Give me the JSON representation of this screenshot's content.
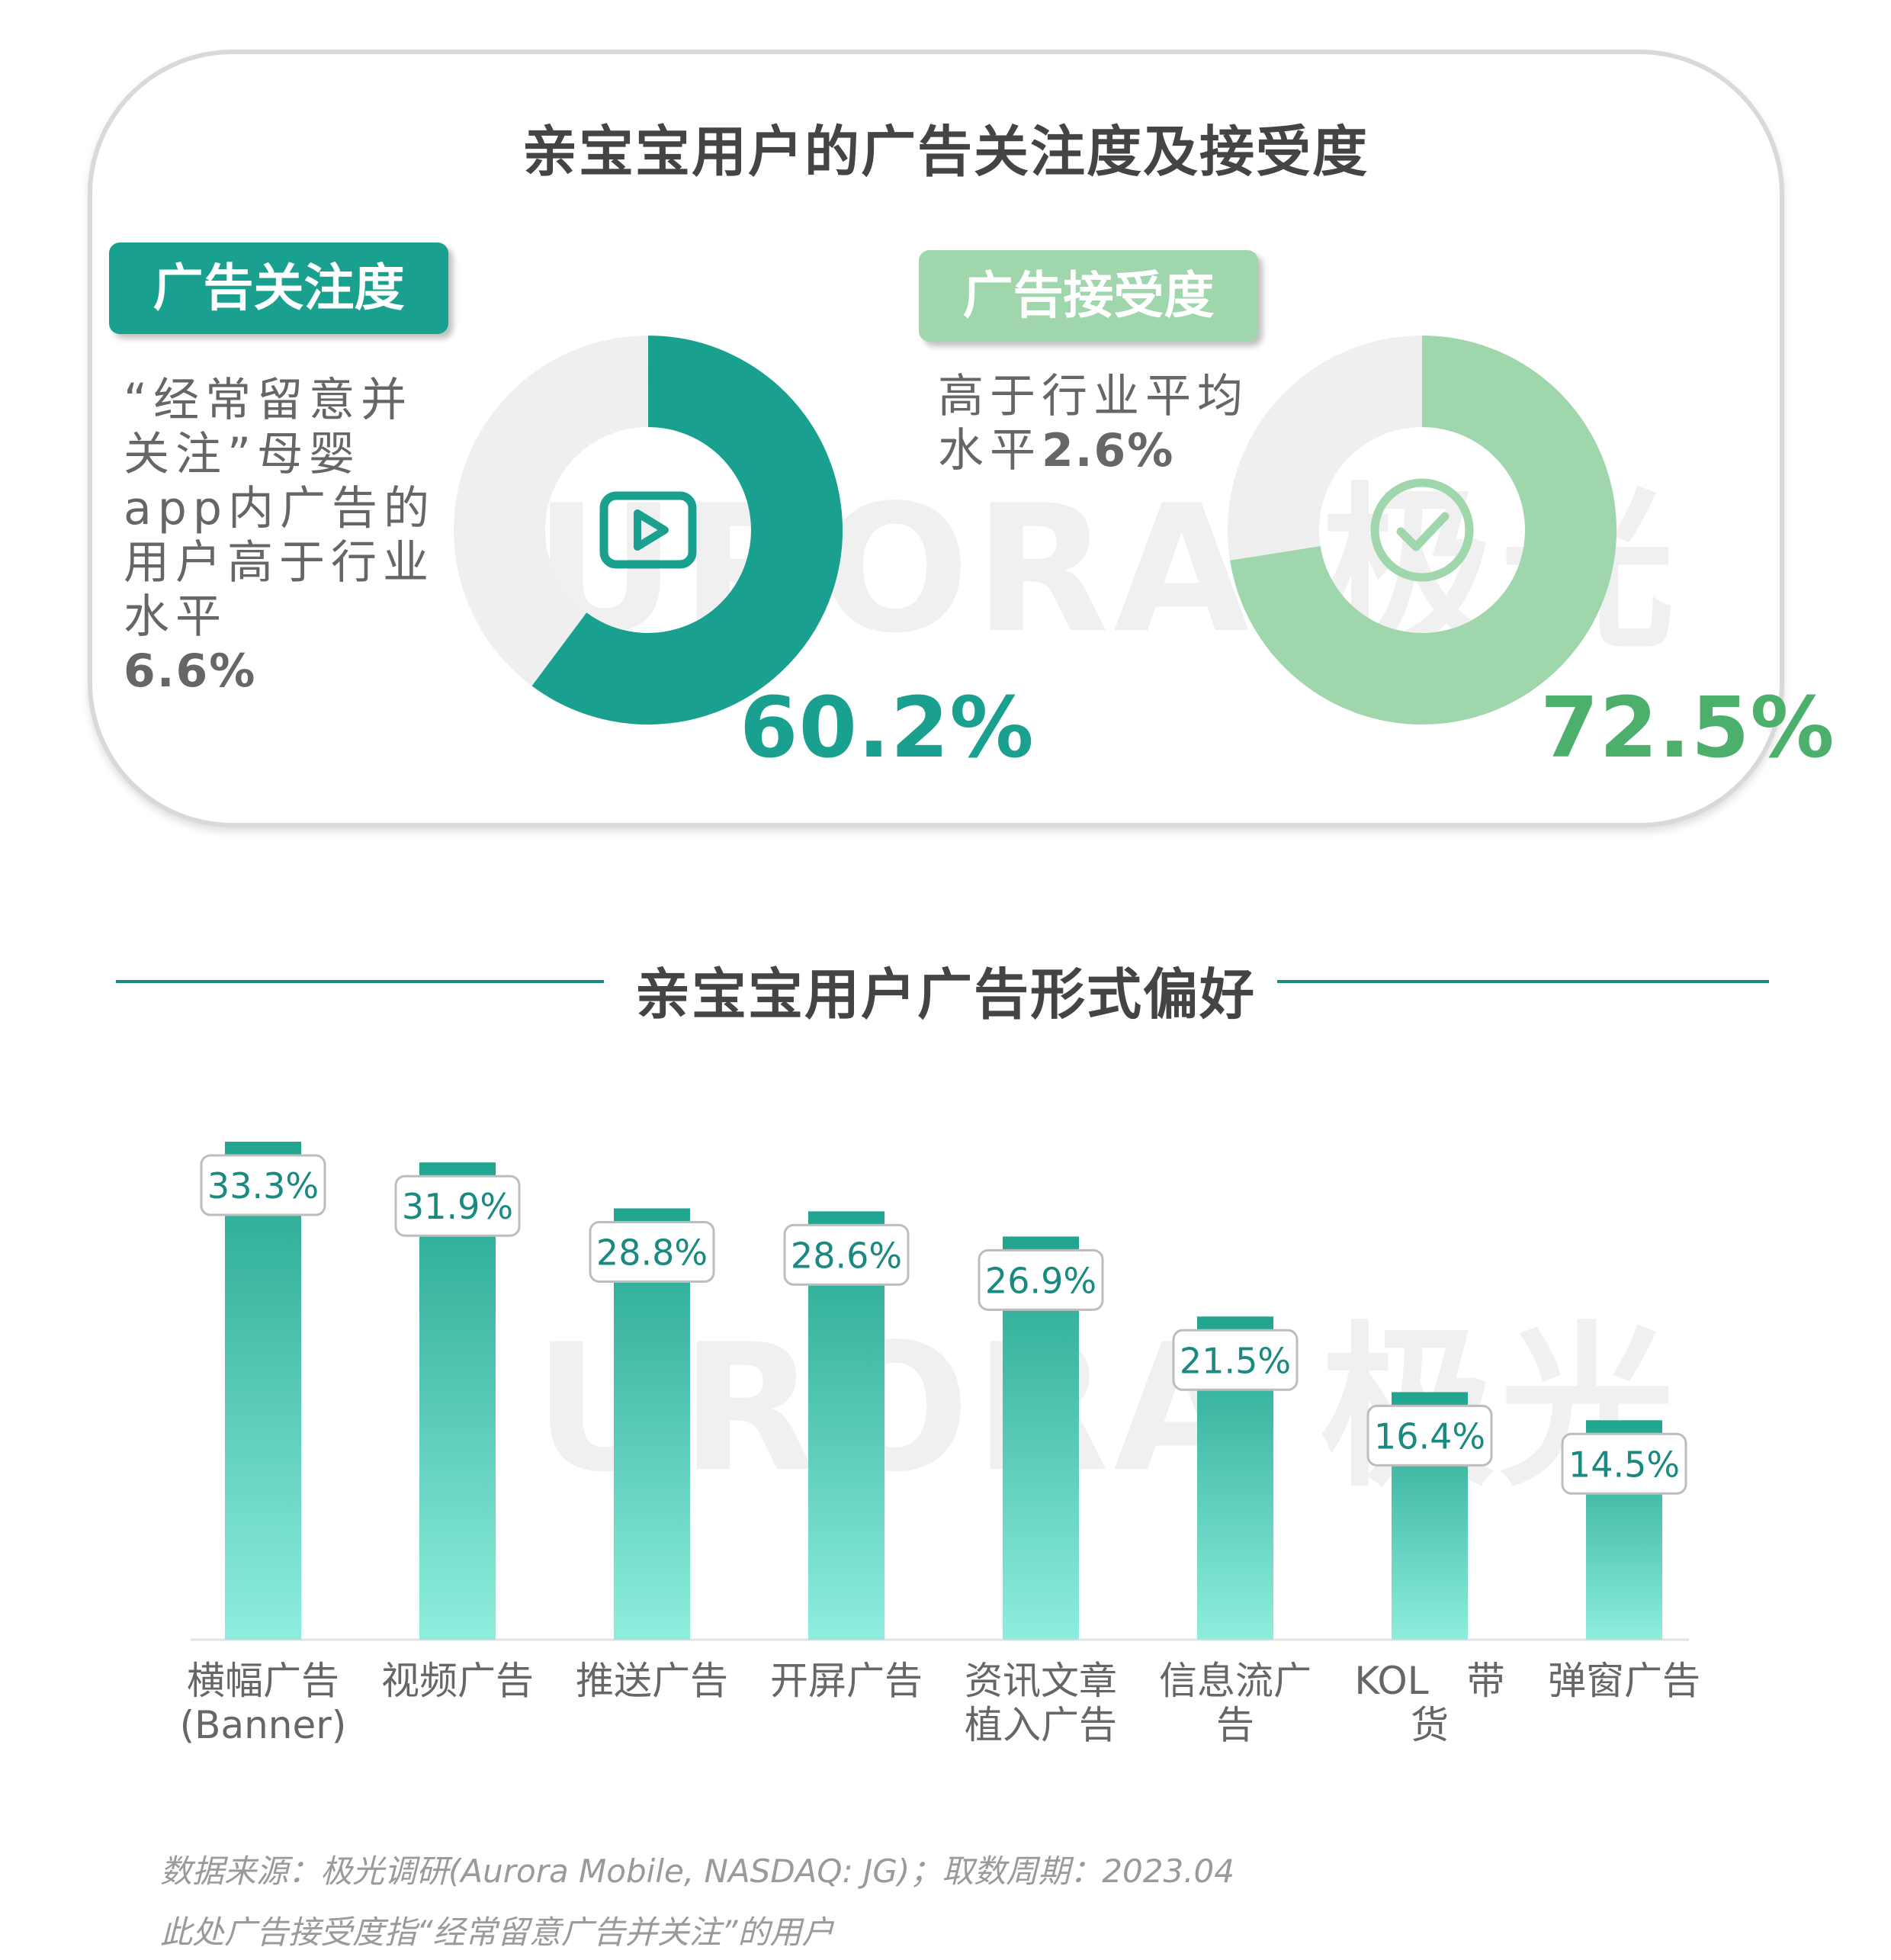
{
  "top_panel": {
    "title": "亲宝宝用户的广告关注度及接受度",
    "attention": {
      "tag": "广告关注度",
      "desc": "“经常留意并关注”母婴app内广告的用户高于行业水平",
      "desc_value": "6.6%",
      "percent_label": "60.2%",
      "percent": 60.2,
      "icon": "play-icon",
      "color": "#1aa08f"
    },
    "acceptance": {
      "tag": "广告接受度",
      "desc": "高于行业平均水平",
      "desc_value": "2.6%",
      "percent_label": "72.5%",
      "percent": 72.5,
      "icon": "check-circle-icon",
      "color": "#9fd6ac"
    }
  },
  "bottom_panel": {
    "title": "亲宝宝用户广告形式偏好"
  },
  "chart_data": {
    "type": "bar",
    "title": "亲宝宝用户广告形式偏好",
    "categories": [
      "横幅广告(Banner)",
      "视频广告",
      "推送广告",
      "开屏广告",
      "资讯文章植入广告",
      "信息流广告",
      "KOL 带货",
      "弹窗广告"
    ],
    "category_lines": [
      [
        "横幅广告",
        "(Banner)"
      ],
      [
        "视频广告"
      ],
      [
        "推送广告"
      ],
      [
        "开屏广告"
      ],
      [
        "资讯文章",
        "植入广告"
      ],
      [
        "信息流广告"
      ],
      [
        "KOL　带",
        "货"
      ],
      [
        "弹窗广告"
      ]
    ],
    "values": [
      33.3,
      31.9,
      28.8,
      28.6,
      26.9,
      21.5,
      16.4,
      14.5
    ],
    "value_labels": [
      "33.3%",
      "31.9%",
      "28.8%",
      "28.6%",
      "26.9%",
      "21.5%",
      "16.4%",
      "14.5%"
    ],
    "ylim": [
      0,
      35
    ],
    "grid": false,
    "colors": {
      "bar_top": "#22a58f",
      "bar_bottom": "#8eeedd",
      "label_text": "#1a8a80"
    }
  },
  "watermark": "URORA 极光",
  "footnotes": [
    "数据来源：极光调研(Aurora Mobile, NASDAQ: JG)；取数周期：2023.04",
    "此处广告接受度指“经常留意广告并关注”的用户"
  ]
}
